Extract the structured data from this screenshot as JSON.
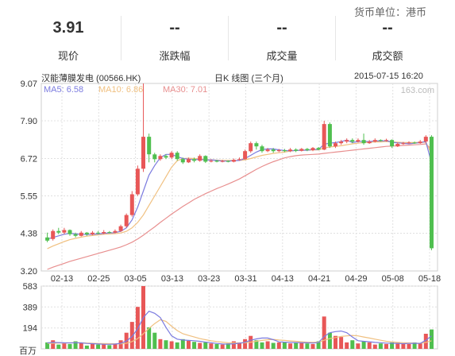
{
  "currency_label": "货币单位：港币",
  "stats": [
    {
      "value": "3.91",
      "label": "现价"
    },
    {
      "value": "--",
      "label": "涨跌幅"
    },
    {
      "value": "--",
      "label": "成交量"
    },
    {
      "value": "--",
      "label": "成交额"
    }
  ],
  "chart_header": {
    "stock_name": "汉能薄膜发电 (00566.HK)",
    "chart_title": "日K 线图 (三个月)",
    "datetime": "2015-07-15 16:20",
    "watermark": "163.com"
  },
  "colors": {
    "up": "#e85757",
    "down": "#4fbf4f",
    "ma5": "#7b7bdf",
    "ma10": "#f0c080",
    "ma30": "#e88f8f",
    "grid": "#e0e0e0"
  },
  "chart_data": {
    "type": "candlestick",
    "price_axis": {
      "ticks": [
        "9.07",
        "7.90",
        "6.72",
        "5.55",
        "4.38",
        "3.20"
      ],
      "ylim": [
        3.2,
        9.07
      ]
    },
    "x_ticks": [
      "02-13",
      "02-25",
      "03-05",
      "03-13",
      "03-23",
      "03-31",
      "04-13",
      "04-21",
      "04-29",
      "05-08",
      "05-18"
    ],
    "legend": [
      {
        "name": "MA5",
        "value": "6.58"
      },
      {
        "name": "MA10",
        "value": "6.86"
      },
      {
        "name": "MA30",
        "value": "7.01"
      }
    ],
    "candles": [
      [
        4.25,
        4.15,
        4.4,
        4.1
      ],
      [
        4.2,
        4.45,
        4.5,
        4.15
      ],
      [
        4.45,
        4.4,
        4.55,
        4.35
      ],
      [
        4.4,
        4.48,
        4.55,
        4.35
      ],
      [
        4.48,
        4.35,
        4.5,
        4.3
      ],
      [
        4.35,
        4.3,
        4.4,
        4.25
      ],
      [
        4.3,
        4.4,
        4.45,
        4.28
      ],
      [
        4.4,
        4.35,
        4.42,
        4.3
      ],
      [
        4.35,
        4.4,
        4.45,
        4.32
      ],
      [
        4.4,
        4.38,
        4.45,
        4.35
      ],
      [
        4.38,
        4.42,
        4.48,
        4.35
      ],
      [
        4.42,
        4.4,
        4.45,
        4.38
      ],
      [
        4.4,
        4.45,
        4.5,
        4.38
      ],
      [
        4.45,
        4.6,
        4.65,
        4.42
      ],
      [
        4.6,
        4.95,
        5.0,
        4.55
      ],
      [
        4.95,
        5.6,
        5.7,
        4.9
      ],
      [
        5.6,
        6.4,
        6.5,
        5.55
      ],
      [
        6.4,
        7.4,
        9.07,
        6.3
      ],
      [
        7.4,
        6.85,
        7.5,
        6.6
      ],
      [
        6.85,
        6.7,
        6.9,
        6.6
      ],
      [
        6.7,
        6.8,
        6.85,
        6.65
      ],
      [
        6.8,
        6.75,
        6.85,
        6.7
      ],
      [
        6.75,
        6.9,
        6.95,
        6.7
      ],
      [
        6.9,
        6.7,
        6.95,
        6.65
      ],
      [
        6.7,
        6.6,
        6.75,
        6.55
      ],
      [
        6.6,
        6.7,
        6.75,
        6.58
      ],
      [
        6.7,
        6.65,
        6.75,
        6.6
      ],
      [
        6.65,
        6.8,
        6.85,
        6.62
      ],
      [
        6.8,
        6.62,
        6.82,
        6.58
      ],
      [
        6.62,
        6.65,
        6.7,
        6.6
      ],
      [
        6.65,
        6.62,
        6.68,
        6.6
      ],
      [
        6.62,
        6.64,
        6.68,
        6.6
      ],
      [
        6.64,
        6.62,
        6.66,
        6.6
      ],
      [
        6.62,
        6.68,
        6.72,
        6.6
      ],
      [
        6.68,
        6.7,
        6.75,
        6.65
      ],
      [
        6.7,
        6.95,
        7.0,
        6.68
      ],
      [
        6.95,
        7.2,
        7.25,
        6.9
      ],
      [
        7.2,
        7.1,
        7.25,
        7.0
      ],
      [
        7.1,
        6.95,
        7.15,
        6.9
      ],
      [
        6.95,
        7.0,
        7.05,
        6.92
      ],
      [
        7.0,
        6.95,
        7.05,
        6.9
      ],
      [
        6.95,
        6.98,
        7.02,
        6.92
      ],
      [
        6.98,
        6.95,
        7.02,
        6.92
      ],
      [
        6.95,
        7.0,
        7.05,
        6.92
      ],
      [
        7.0,
        6.96,
        7.04,
        6.92
      ],
      [
        6.96,
        7.02,
        7.05,
        6.94
      ],
      [
        7.02,
        6.98,
        7.05,
        6.95
      ],
      [
        6.98,
        7.05,
        7.08,
        6.95
      ],
      [
        7.05,
        7.0,
        7.08,
        6.98
      ],
      [
        7.0,
        7.8,
        7.9,
        6.98
      ],
      [
        7.8,
        7.1,
        7.85,
        7.05
      ],
      [
        7.1,
        7.2,
        7.25,
        7.05
      ],
      [
        7.2,
        7.25,
        7.3,
        7.15
      ],
      [
        7.25,
        7.3,
        7.35,
        7.2
      ],
      [
        7.3,
        7.25,
        7.35,
        7.2
      ],
      [
        7.25,
        7.3,
        7.35,
        7.22
      ],
      [
        7.3,
        7.2,
        7.5,
        7.15
      ],
      [
        7.2,
        7.25,
        7.3,
        7.18
      ],
      [
        7.25,
        7.3,
        7.35,
        7.22
      ],
      [
        7.3,
        7.28,
        7.32,
        7.25
      ],
      [
        7.28,
        7.3,
        7.34,
        7.25
      ],
      [
        7.3,
        7.1,
        7.32,
        7.05
      ],
      [
        7.1,
        7.18,
        7.22,
        7.08
      ],
      [
        7.18,
        7.2,
        7.24,
        7.15
      ],
      [
        7.2,
        7.22,
        7.26,
        7.18
      ],
      [
        7.22,
        7.2,
        7.25,
        7.18
      ],
      [
        7.2,
        7.25,
        7.3,
        7.18
      ],
      [
        7.25,
        7.4,
        7.45,
        7.2
      ],
      [
        7.4,
        3.91,
        7.45,
        3.85
      ]
    ],
    "ma5": [
      4.2,
      4.25,
      4.3,
      4.35,
      4.38,
      4.36,
      4.35,
      4.34,
      4.35,
      4.36,
      4.38,
      4.39,
      4.4,
      4.44,
      4.55,
      4.8,
      5.2,
      5.7,
      6.2,
      6.5,
      6.75,
      6.85,
      6.85,
      6.78,
      6.72,
      6.7,
      6.68,
      6.7,
      6.67,
      6.68,
      6.66,
      6.64,
      6.64,
      6.65,
      6.66,
      6.72,
      6.82,
      6.92,
      7.0,
      7.02,
      7.02,
      6.99,
      6.97,
      6.96,
      6.97,
      6.98,
      6.98,
      7.0,
      7.0,
      7.17,
      7.2,
      7.22,
      7.25,
      7.3,
      7.22,
      7.25,
      7.26,
      7.25,
      7.27,
      7.27,
      7.28,
      7.23,
      7.21,
      7.2,
      7.18,
      7.2,
      7.22,
      7.25,
      6.58
    ],
    "ma10": [
      3.9,
      3.98,
      4.05,
      4.12,
      4.18,
      4.22,
      4.26,
      4.29,
      4.31,
      4.33,
      4.35,
      4.36,
      4.37,
      4.39,
      4.44,
      4.55,
      4.72,
      4.95,
      5.25,
      5.55,
      5.85,
      6.15,
      6.45,
      6.65,
      6.72,
      6.73,
      6.72,
      6.71,
      6.69,
      6.68,
      6.67,
      6.66,
      6.66,
      6.66,
      6.66,
      6.68,
      6.72,
      6.77,
      6.82,
      6.85,
      6.88,
      6.9,
      6.92,
      6.95,
      6.97,
      6.98,
      6.98,
      6.99,
      6.99,
      7.05,
      7.08,
      7.1,
      7.12,
      7.15,
      7.18,
      7.2,
      7.22,
      7.23,
      7.24,
      7.24,
      7.25,
      7.24,
      7.23,
      7.22,
      7.22,
      7.22,
      7.23,
      7.23,
      6.86
    ],
    "ma30": [
      3.25,
      3.32,
      3.38,
      3.44,
      3.5,
      3.55,
      3.6,
      3.65,
      3.7,
      3.75,
      3.8,
      3.85,
      3.9,
      3.95,
      4.02,
      4.1,
      4.2,
      4.32,
      4.45,
      4.58,
      4.72,
      4.85,
      4.98,
      5.1,
      5.22,
      5.33,
      5.44,
      5.53,
      5.62,
      5.7,
      5.78,
      5.85,
      5.92,
      6.0,
      6.08,
      6.18,
      6.28,
      6.38,
      6.47,
      6.55,
      6.62,
      6.68,
      6.74,
      6.78,
      6.81,
      6.83,
      6.84,
      6.85,
      6.86,
      6.88,
      6.9,
      6.92,
      6.94,
      6.96,
      6.98,
      7.0,
      7.02,
      7.04,
      7.06,
      7.08,
      7.1,
      7.11,
      7.12,
      7.13,
      7.14,
      7.15,
      7.16,
      7.18,
      7.01
    ],
    "volume_axis": {
      "ticks": [
        "583",
        "389",
        "194"
      ],
      "unit_label": "百万",
      "ylim": [
        0,
        583
      ]
    },
    "volume": [
      60,
      80,
      40,
      50,
      45,
      70,
      55,
      30,
      50,
      40,
      45,
      35,
      50,
      80,
      150,
      250,
      390,
      583,
      200,
      150,
      90,
      80,
      70,
      60,
      90,
      75,
      65,
      55,
      60,
      50,
      45,
      40,
      50,
      70,
      60,
      90,
      120,
      80,
      60,
      70,
      55,
      60,
      65,
      50,
      55,
      60,
      50,
      45,
      70,
      300,
      150,
      120,
      110,
      60,
      80,
      50,
      70,
      60,
      40,
      50,
      45,
      60,
      55,
      50,
      45,
      60,
      50,
      140,
      180
    ],
    "vol_ma5": [
      55,
      60,
      58,
      56,
      55,
      57,
      55,
      50,
      48,
      45,
      43,
      42,
      44,
      52,
      72,
      115,
      185,
      290,
      350,
      330,
      290,
      200,
      120,
      90,
      82,
      78,
      75,
      70,
      63,
      57,
      50,
      45,
      44,
      47,
      52,
      61,
      80,
      92,
      100,
      100,
      85,
      65,
      62,
      60,
      58,
      57,
      56,
      54,
      58,
      115,
      150,
      160,
      165,
      150,
      110,
      75,
      70,
      66,
      60,
      57,
      53,
      52,
      50,
      48,
      50,
      52,
      50,
      80,
      120
    ],
    "vol_ma10": [
      50,
      52,
      54,
      55,
      55,
      56,
      56,
      54,
      52,
      50,
      49,
      48,
      47,
      47,
      52,
      68,
      95,
      140,
      190,
      235,
      270,
      255,
      210,
      170,
      140,
      125,
      110,
      95,
      85,
      75,
      68,
      62,
      57,
      55,
      54,
      56,
      62,
      70,
      78,
      85,
      88,
      82,
      78,
      74,
      70,
      66,
      62,
      60,
      62,
      80,
      95,
      105,
      115,
      120,
      125,
      120,
      110,
      100,
      90,
      80,
      70,
      65,
      60,
      57,
      55,
      53,
      52,
      60,
      75
    ]
  }
}
